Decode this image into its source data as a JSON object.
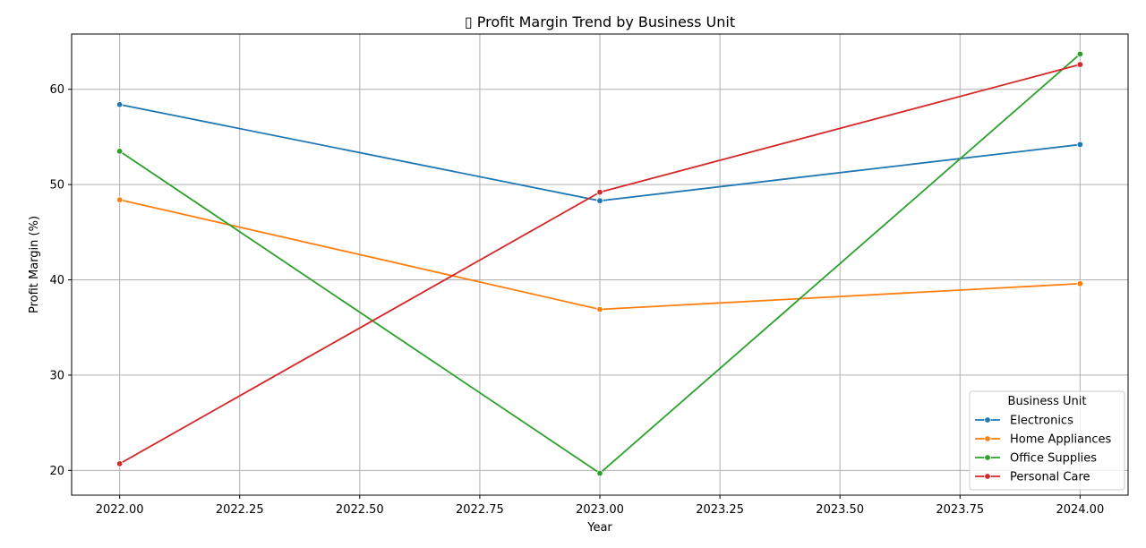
{
  "chart_data": {
    "type": "line",
    "title": "▯ Profit Margin Trend by Business Unit",
    "xlabel": "Year",
    "ylabel": "Profit Margin (%)",
    "x": [
      2022,
      2023,
      2024
    ],
    "xlim": [
      2021.9,
      2024.1
    ],
    "ylim": [
      17.4,
      65.8
    ],
    "x_ticks": [
      2022.0,
      2022.25,
      2022.5,
      2022.75,
      2023.0,
      2023.25,
      2023.5,
      2023.75,
      2024.0
    ],
    "x_tick_labels": [
      "2022.00",
      "2022.25",
      "2022.50",
      "2022.75",
      "2023.00",
      "2023.25",
      "2023.50",
      "2023.75",
      "2024.00"
    ],
    "y_ticks": [
      20,
      30,
      40,
      50,
      60
    ],
    "y_tick_labels": [
      "20",
      "30",
      "40",
      "50",
      "60"
    ],
    "grid": true,
    "legend": {
      "title": "Business Unit",
      "placement": "bottom-right"
    },
    "series": [
      {
        "name": "Electronics",
        "color": "#1f77b4",
        "values": [
          58.4,
          48.3,
          54.2
        ]
      },
      {
        "name": "Home Appliances",
        "color": "#ff7f0e",
        "values": [
          48.4,
          36.9,
          39.6
        ]
      },
      {
        "name": "Office Supplies",
        "color": "#2ca02c",
        "values": [
          53.5,
          19.7,
          63.7
        ]
      },
      {
        "name": "Personal Care",
        "color": "#d62728",
        "values": [
          20.7,
          49.2,
          62.6
        ]
      }
    ]
  }
}
